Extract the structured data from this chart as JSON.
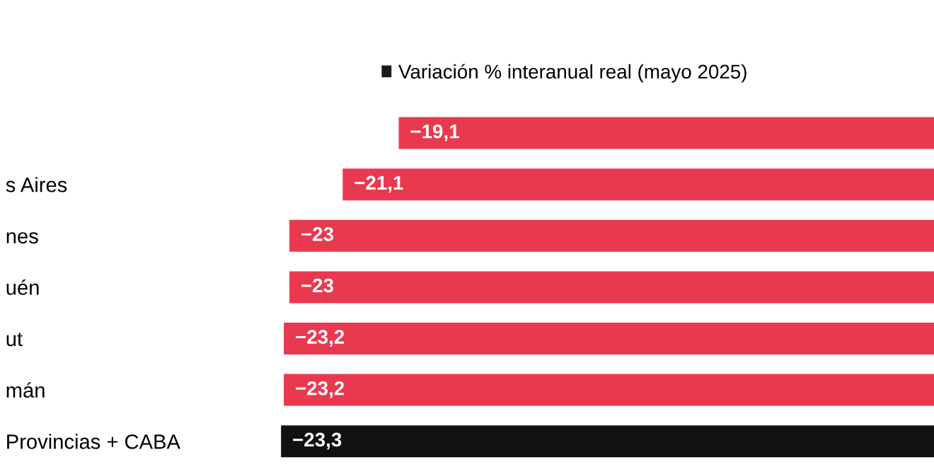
{
  "chart_data": {
    "type": "bar",
    "orientation": "horizontal",
    "categories": [
      null,
      "s Aires",
      "nes",
      "uén",
      "ut",
      "mán",
      "Provincias + CABA"
    ],
    "series": [
      {
        "name": "Variación % interanual real (mayo 2025)",
        "color": "#1a1a1a",
        "colors": [
          "#e8394f",
          "#e8394f",
          "#e8394f",
          "#e8394f",
          "#e8394f",
          "#e8394f",
          "#111111"
        ],
        "values": [
          -19.1,
          -21.1,
          -23,
          -23,
          -23.2,
          -23.2,
          -23.3
        ],
        "value_labels": [
          "−19,1",
          "−21,1",
          "−23",
          "−23",
          "−23,2",
          "−23,2",
          "−23,3"
        ]
      }
    ],
    "legend": "top",
    "tick_labels": "y",
    "grid": false
  }
}
